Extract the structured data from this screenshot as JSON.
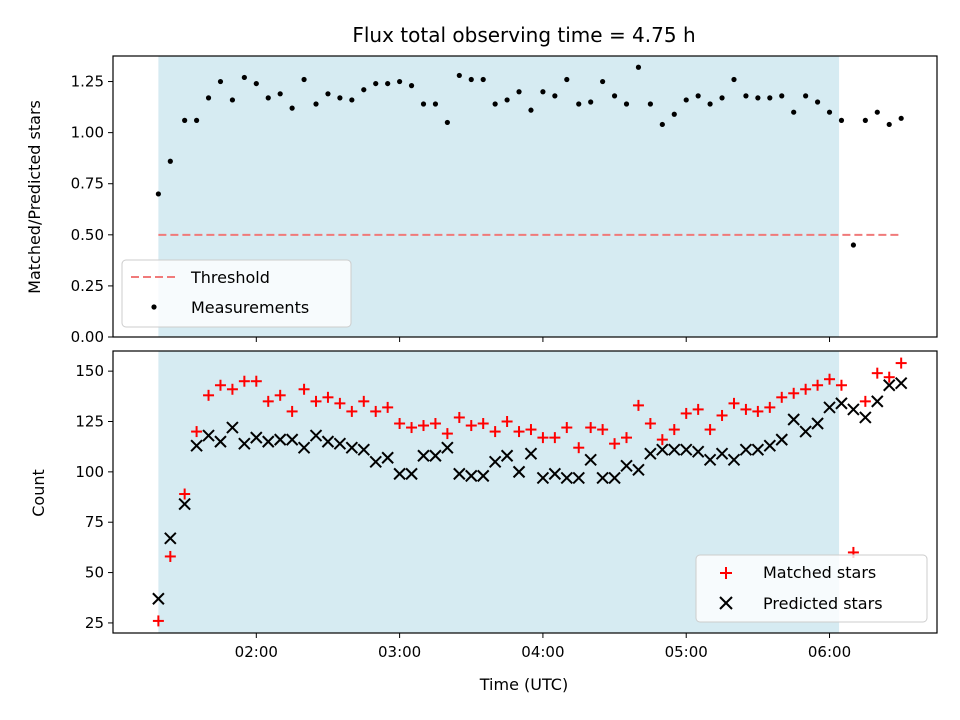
{
  "chart_data": [
    {
      "type": "scatter",
      "title": "Flux total observing time = 4.75 h",
      "xlabel": "",
      "ylabel": "Matched/Predicted stars",
      "ylim": [
        0,
        1.375
      ],
      "yticks": [
        "0.00",
        "0.25",
        "0.50",
        "0.75",
        "1.00",
        "1.25"
      ],
      "xticks": [
        "02:00",
        "03:00",
        "04:00",
        "05:00",
        "06:00"
      ],
      "xlim": [
        "01:00",
        "06:45"
      ],
      "shaded_interval": [
        "01:19",
        "06:04"
      ],
      "threshold": {
        "name": "Threshold",
        "value": 0.5,
        "color": "#f07a7a"
      },
      "legend": {
        "position": "lower-left",
        "entries": [
          "Threshold",
          "Measurements"
        ]
      },
      "series": [
        {
          "name": "Measurements",
          "color": "#000000",
          "points": [
            [
              "01:19",
              0.7
            ],
            [
              "01:24",
              0.86
            ],
            [
              "01:30",
              1.06
            ],
            [
              "01:35",
              1.06
            ],
            [
              "01:40",
              1.17
            ],
            [
              "01:45",
              1.25
            ],
            [
              "01:50",
              1.16
            ],
            [
              "01:55",
              1.27
            ],
            [
              "02:00",
              1.24
            ],
            [
              "02:05",
              1.17
            ],
            [
              "02:10",
              1.19
            ],
            [
              "02:15",
              1.12
            ],
            [
              "02:20",
              1.26
            ],
            [
              "02:25",
              1.14
            ],
            [
              "02:30",
              1.19
            ],
            [
              "02:35",
              1.17
            ],
            [
              "02:40",
              1.16
            ],
            [
              "02:45",
              1.21
            ],
            [
              "02:50",
              1.24
            ],
            [
              "02:55",
              1.24
            ],
            [
              "03:00",
              1.25
            ],
            [
              "03:05",
              1.23
            ],
            [
              "03:10",
              1.14
            ],
            [
              "03:15",
              1.14
            ],
            [
              "03:20",
              1.05
            ],
            [
              "03:25",
              1.28
            ],
            [
              "03:30",
              1.26
            ],
            [
              "03:35",
              1.26
            ],
            [
              "03:40",
              1.14
            ],
            [
              "03:45",
              1.16
            ],
            [
              "03:50",
              1.2
            ],
            [
              "03:55",
              1.11
            ],
            [
              "04:00",
              1.2
            ],
            [
              "04:05",
              1.18
            ],
            [
              "04:10",
              1.26
            ],
            [
              "04:15",
              1.14
            ],
            [
              "04:20",
              1.15
            ],
            [
              "04:25",
              1.25
            ],
            [
              "04:30",
              1.18
            ],
            [
              "04:35",
              1.14
            ],
            [
              "04:40",
              1.32
            ],
            [
              "04:45",
              1.14
            ],
            [
              "04:50",
              1.04
            ],
            [
              "04:55",
              1.09
            ],
            [
              "05:00",
              1.16
            ],
            [
              "05:05",
              1.18
            ],
            [
              "05:10",
              1.14
            ],
            [
              "05:15",
              1.17
            ],
            [
              "05:20",
              1.26
            ],
            [
              "05:25",
              1.18
            ],
            [
              "05:30",
              1.17
            ],
            [
              "05:35",
              1.17
            ],
            [
              "05:40",
              1.18
            ],
            [
              "05:45",
              1.1
            ],
            [
              "05:50",
              1.18
            ],
            [
              "05:55",
              1.15
            ],
            [
              "06:00",
              1.1
            ],
            [
              "06:05",
              1.06
            ],
            [
              "06:10",
              0.45
            ],
            [
              "06:15",
              1.06
            ],
            [
              "06:20",
              1.1
            ],
            [
              "06:25",
              1.04
            ],
            [
              "06:30",
              1.07
            ]
          ]
        }
      ],
      "grid": false
    },
    {
      "type": "scatter",
      "title": "",
      "xlabel": "Time (UTC)",
      "ylabel": "Count",
      "ylim": [
        20,
        160
      ],
      "yticks": [
        "25",
        "50",
        "75",
        "100",
        "125",
        "150"
      ],
      "xticks": [
        "02:00",
        "03:00",
        "04:00",
        "05:00",
        "06:00"
      ],
      "xlim": [
        "01:00",
        "06:45"
      ],
      "shaded_interval": [
        "01:19",
        "06:04"
      ],
      "legend": {
        "position": "lower-right",
        "entries": [
          "Matched stars",
          "Predicted stars"
        ]
      },
      "series": [
        {
          "name": "Matched stars",
          "marker": "plus",
          "color": "#ff0000",
          "points": [
            [
              "01:19",
              26
            ],
            [
              "01:24",
              58
            ],
            [
              "01:30",
              89
            ],
            [
              "01:35",
              120
            ],
            [
              "01:40",
              138
            ],
            [
              "01:45",
              143
            ],
            [
              "01:50",
              141
            ],
            [
              "01:55",
              145
            ],
            [
              "02:00",
              145
            ],
            [
              "02:05",
              135
            ],
            [
              "02:10",
              138
            ],
            [
              "02:15",
              130
            ],
            [
              "02:20",
              141
            ],
            [
              "02:25",
              135
            ],
            [
              "02:30",
              137
            ],
            [
              "02:35",
              134
            ],
            [
              "02:40",
              130
            ],
            [
              "02:45",
              135
            ],
            [
              "02:50",
              130
            ],
            [
              "02:55",
              132
            ],
            [
              "03:00",
              124
            ],
            [
              "03:05",
              122
            ],
            [
              "03:10",
              123
            ],
            [
              "03:15",
              124
            ],
            [
              "03:20",
              119
            ],
            [
              "03:25",
              127
            ],
            [
              "03:30",
              123
            ],
            [
              "03:35",
              124
            ],
            [
              "03:40",
              120
            ],
            [
              "03:45",
              125
            ],
            [
              "03:50",
              120
            ],
            [
              "03:55",
              121
            ],
            [
              "04:00",
              117
            ],
            [
              "04:05",
              117
            ],
            [
              "04:10",
              122
            ],
            [
              "04:15",
              112
            ],
            [
              "04:20",
              122
            ],
            [
              "04:25",
              121
            ],
            [
              "04:30",
              114
            ],
            [
              "04:35",
              117
            ],
            [
              "04:40",
              133
            ],
            [
              "04:45",
              124
            ],
            [
              "04:50",
              116
            ],
            [
              "04:55",
              121
            ],
            [
              "05:00",
              129
            ],
            [
              "05:05",
              131
            ],
            [
              "05:10",
              121
            ],
            [
              "05:15",
              128
            ],
            [
              "05:20",
              134
            ],
            [
              "05:25",
              131
            ],
            [
              "05:30",
              130
            ],
            [
              "05:35",
              132
            ],
            [
              "05:40",
              137
            ],
            [
              "05:45",
              139
            ],
            [
              "05:50",
              141
            ],
            [
              "05:55",
              143
            ],
            [
              "06:00",
              146
            ],
            [
              "06:05",
              143
            ],
            [
              "06:10",
              60
            ],
            [
              "06:15",
              135
            ],
            [
              "06:20",
              149
            ],
            [
              "06:25",
              147
            ],
            [
              "06:30",
              154
            ]
          ]
        },
        {
          "name": "Predicted stars",
          "marker": "x",
          "color": "#000000",
          "points": [
            [
              "01:19",
              37
            ],
            [
              "01:24",
              67
            ],
            [
              "01:30",
              84
            ],
            [
              "01:35",
              113
            ],
            [
              "01:40",
              118
            ],
            [
              "01:45",
              115
            ],
            [
              "01:50",
              122
            ],
            [
              "01:55",
              114
            ],
            [
              "02:00",
              117
            ],
            [
              "02:05",
              115
            ],
            [
              "02:10",
              116
            ],
            [
              "02:15",
              116
            ],
            [
              "02:20",
              112
            ],
            [
              "02:25",
              118
            ],
            [
              "02:30",
              115
            ],
            [
              "02:35",
              114
            ],
            [
              "02:40",
              112
            ],
            [
              "02:45",
              111
            ],
            [
              "02:50",
              105
            ],
            [
              "02:55",
              107
            ],
            [
              "03:00",
              99
            ],
            [
              "03:05",
              99
            ],
            [
              "03:10",
              108
            ],
            [
              "03:15",
              108
            ],
            [
              "03:20",
              112
            ],
            [
              "03:25",
              99
            ],
            [
              "03:30",
              98
            ],
            [
              "03:35",
              98
            ],
            [
              "03:40",
              105
            ],
            [
              "03:45",
              108
            ],
            [
              "03:50",
              100
            ],
            [
              "03:55",
              109
            ],
            [
              "04:00",
              97
            ],
            [
              "04:05",
              99
            ],
            [
              "04:10",
              97
            ],
            [
              "04:15",
              97
            ],
            [
              "04:20",
              106
            ],
            [
              "04:25",
              97
            ],
            [
              "04:30",
              97
            ],
            [
              "04:35",
              103
            ],
            [
              "04:40",
              101
            ],
            [
              "04:45",
              109
            ],
            [
              "04:50",
              111
            ],
            [
              "04:55",
              111
            ],
            [
              "05:00",
              111
            ],
            [
              "05:05",
              110
            ],
            [
              "05:10",
              106
            ],
            [
              "05:15",
              109
            ],
            [
              "05:20",
              106
            ],
            [
              "05:25",
              111
            ],
            [
              "05:30",
              111
            ],
            [
              "05:35",
              113
            ],
            [
              "05:40",
              116
            ],
            [
              "05:45",
              126
            ],
            [
              "05:50",
              120
            ],
            [
              "05:55",
              124
            ],
            [
              "06:00",
              132
            ],
            [
              "06:05",
              134
            ],
            [
              "06:10",
              131
            ],
            [
              "06:15",
              127
            ],
            [
              "06:20",
              135
            ],
            [
              "06:25",
              143
            ],
            [
              "06:30",
              144
            ]
          ]
        }
      ],
      "grid": false
    }
  ]
}
